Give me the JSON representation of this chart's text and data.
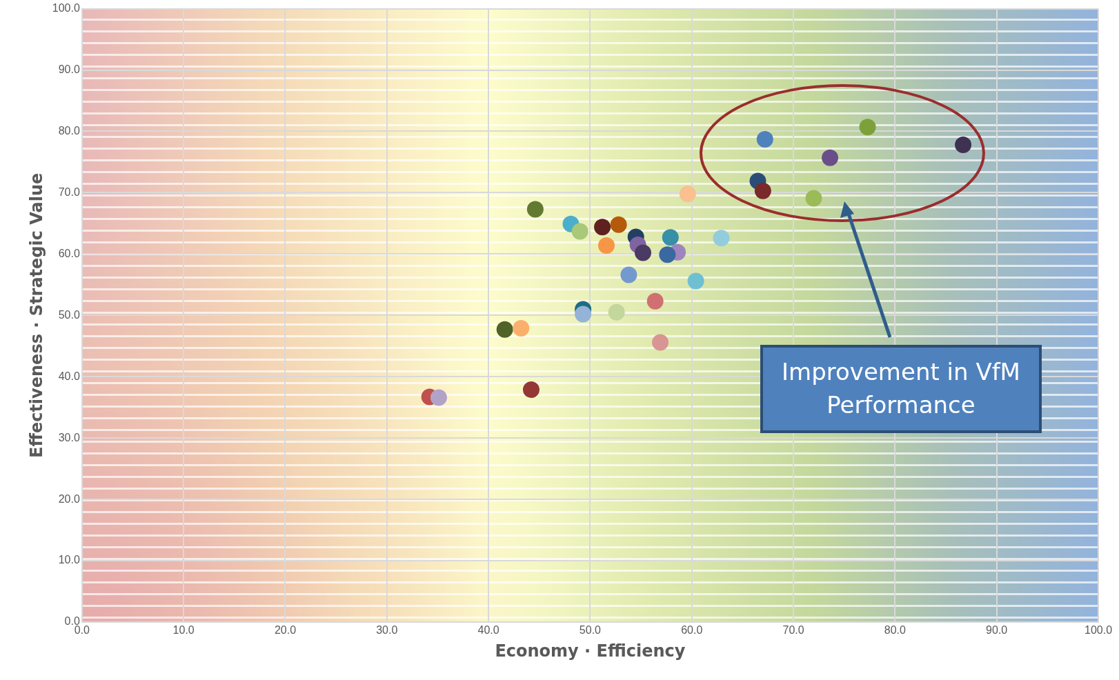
{
  "chart_data": {
    "type": "scatter",
    "xlabel": "Economy · Efficiency",
    "ylabel": "Effectiveness · Strategic Value",
    "annotations": [
      "Improvement in VfM Performance"
    ],
    "x": [
      44.6,
      48.1,
      49.0,
      51.2,
      52.8,
      51.6,
      54.5,
      54.7,
      55.2,
      57.9,
      58.6,
      57.6,
      62.9,
      59.6,
      53.8,
      60.4,
      56.4,
      49.3,
      49.3,
      52.6,
      41.6,
      43.2,
      56.9,
      34.2,
      35.1,
      44.2,
      67.2,
      77.3,
      86.7,
      73.6,
      66.5,
      67.0,
      72.0
    ],
    "values": [
      67.3,
      64.9,
      63.7,
      64.4,
      64.8,
      61.4,
      62.8,
      61.5,
      60.2,
      62.7,
      60.3,
      59.9,
      62.6,
      69.8,
      56.6,
      55.6,
      52.3,
      51.0,
      50.2,
      50.5,
      47.7,
      47.9,
      45.6,
      36.7,
      36.6,
      37.9,
      78.7,
      80.7,
      77.8,
      75.7,
      71.9,
      70.3,
      69.1
    ],
    "colors": [
      "#627a32",
      "#4bafcc",
      "#a9c878",
      "#602020",
      "#b55a0a",
      "#f79646",
      "#243f65",
      "#8064a2",
      "#4b3a63",
      "#378fa8",
      "#9e85be",
      "#3a68a0",
      "#93cddd",
      "#fac090",
      "#7399cf",
      "#6fbfd2",
      "#d07070",
      "#1f6b84",
      "#95b3d7",
      "#c3d69b",
      "#4f6228",
      "#fab06c",
      "#d99594",
      "#c0504d",
      "#b3a2c7",
      "#953735",
      "#4f81bd",
      "#7ea03b",
      "#3f3151",
      "#6a4e8a",
      "#2a4d78",
      "#7a2a2a",
      "#9bbb59"
    ],
    "xlim": [
      0,
      100
    ],
    "ylim": [
      0,
      100
    ],
    "xticks": [
      {
        "value": 0,
        "label": "0.0"
      },
      {
        "value": 10,
        "label": "10.0"
      },
      {
        "value": 20,
        "label": "20.0"
      },
      {
        "value": 30,
        "label": "30.0"
      },
      {
        "value": 40,
        "label": "40.0"
      },
      {
        "value": 50,
        "label": "50.0"
      },
      {
        "value": 60,
        "label": "60.0"
      },
      {
        "value": 70,
        "label": "70.0"
      },
      {
        "value": 80,
        "label": "80.0"
      },
      {
        "value": 90,
        "label": "90.0"
      },
      {
        "value": 100,
        "label": "100.0"
      }
    ],
    "yticks": [
      {
        "value": 0,
        "label": "0.0"
      },
      {
        "value": 10,
        "label": "10.0"
      },
      {
        "value": 20,
        "label": "20.0"
      },
      {
        "value": 30,
        "label": "30.0"
      },
      {
        "value": 40,
        "label": "40.0"
      },
      {
        "value": 50,
        "label": "50.0"
      },
      {
        "value": 60,
        "label": "60.0"
      },
      {
        "value": 70,
        "label": "70.0"
      },
      {
        "value": 80,
        "label": "80.0"
      },
      {
        "value": 90,
        "label": "90.0"
      },
      {
        "value": 100,
        "label": "100.0"
      }
    ],
    "grid": true,
    "marker": "circle",
    "legend": false
  }
}
